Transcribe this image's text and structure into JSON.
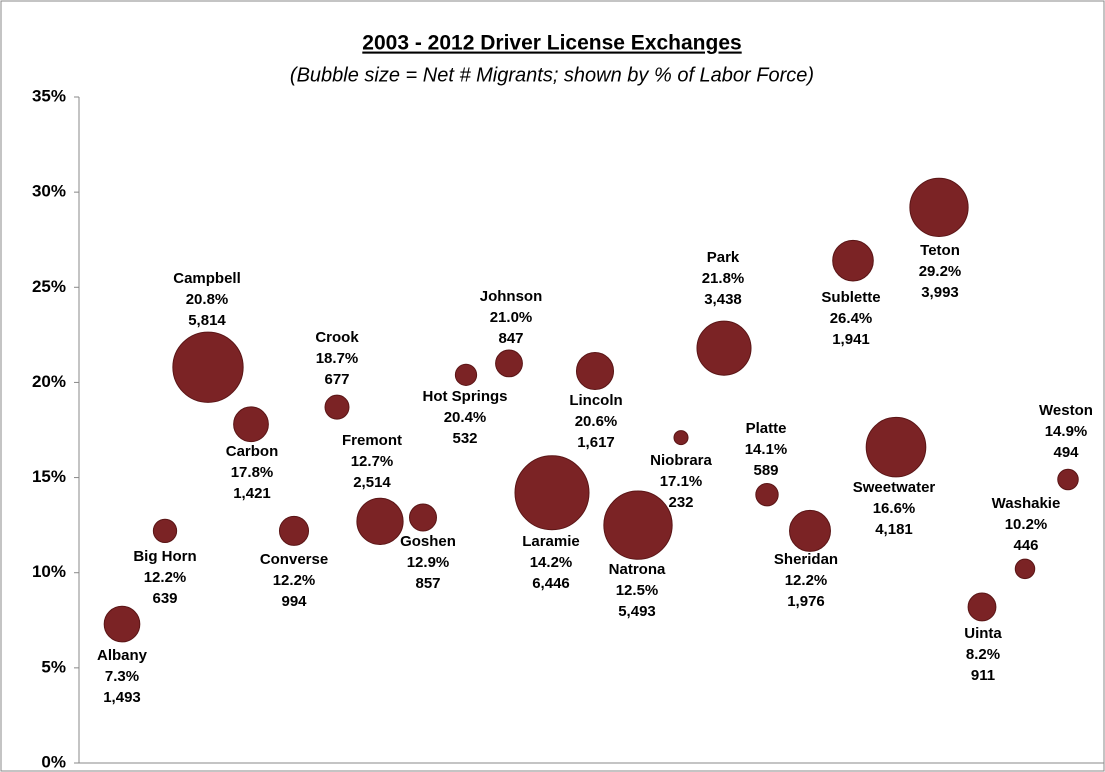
{
  "chart_data": {
    "type": "bubble",
    "title": "2003 - 2012 Driver License Exchanges",
    "subtitle": "(Bubble size = Net # Migrants; shown by % of Labor Force)",
    "categories": [
      "Albany",
      "Big Horn",
      "Campbell",
      "Carbon",
      "Converse",
      "Crook",
      "Fremont",
      "Goshen",
      "Hot Springs",
      "Johnson",
      "Laramie",
      "Lincoln",
      "Natrona",
      "Niobrara",
      "Park",
      "Platte",
      "Sheridan",
      "Sublette",
      "Sweetwater",
      "Teton",
      "Uinta",
      "Washakie",
      "Weston"
    ],
    "values": [
      7.3,
      12.2,
      20.8,
      17.8,
      12.2,
      18.7,
      12.7,
      12.9,
      20.4,
      21.0,
      14.2,
      20.6,
      12.5,
      17.1,
      21.8,
      14.1,
      12.2,
      26.4,
      16.6,
      29.2,
      8.2,
      10.2,
      14.9
    ],
    "value_labels": [
      "7.3%",
      "12.2%",
      "20.8%",
      "17.8%",
      "12.2%",
      "18.7%",
      "12.7%",
      "12.9%",
      "20.4%",
      "21.0%",
      "14.2%",
      "20.6%",
      "12.5%",
      "17.1%",
      "21.8%",
      "14.1%",
      "12.2%",
      "26.4%",
      "16.6%",
      "29.2%",
      "8.2%",
      "10.2%",
      "14.9%"
    ],
    "sizes": [
      1493,
      639,
      5814,
      1421,
      994,
      677,
      2514,
      857,
      532,
      847,
      6446,
      1617,
      5493,
      232,
      3438,
      589,
      1976,
      1941,
      4181,
      3993,
      911,
      446,
      494
    ],
    "size_labels": [
      "1,493",
      "639",
      "5,814",
      "1,421",
      "994",
      "677",
      "2,514",
      "857",
      "532",
      "847",
      "6,446",
      "1,617",
      "5,493",
      "232",
      "3,438",
      "589",
      "1,976",
      "1,941",
      "4,181",
      "3,993",
      "911",
      "446",
      "494"
    ],
    "color": "#7b2325",
    "ylim": [
      0,
      35
    ],
    "yticks": [
      {
        "value": 0,
        "label": "0%"
      },
      {
        "value": 5,
        "label": "5%"
      },
      {
        "value": 10,
        "label": "10%"
      },
      {
        "value": 15,
        "label": "15%"
      },
      {
        "value": 20,
        "label": "20%"
      },
      {
        "value": 25,
        "label": "25%"
      },
      {
        "value": 30,
        "label": "30%"
      },
      {
        "value": 35,
        "label": "35%"
      }
    ]
  }
}
